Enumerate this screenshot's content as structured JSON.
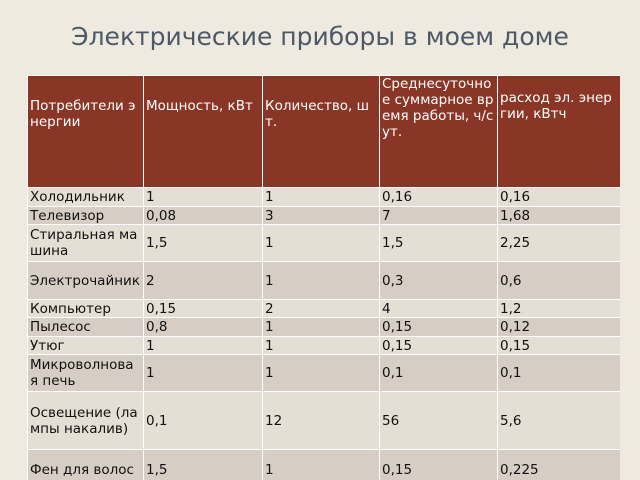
{
  "title": "Электрические приборы в моем доме",
  "table": {
    "header": [
      "Потребители энергии",
      "Мощность, кВт",
      "Количество, шт.",
      "Среднесуточное суммарное время работы, ч/сут.",
      " расход эл. энергии, кВтч"
    ],
    "rows": [
      [
        "Холодильник",
        "1",
        "1",
        "0,16",
        "0,16"
      ],
      [
        "Телевизор",
        "0,08",
        "3",
        "7",
        "1,68"
      ],
      [
        "Стиральная машина",
        "1,5",
        "1",
        "1,5",
        "2,25"
      ],
      [
        "Электрочайник",
        "2",
        "1",
        "0,3",
        "0,6"
      ],
      [
        "Компьютер",
        "0,15",
        "2",
        "4",
        "1,2"
      ],
      [
        "Пылесос",
        "0,8",
        "1",
        "0,15",
        "0,12"
      ],
      [
        "Утюг",
        "1",
        "1",
        "0,15",
        "0,15"
      ],
      [
        "Микроволновая печь",
        "1",
        "1",
        "0,1",
        "0,1"
      ],
      [
        "Освещение (лампы накалив)",
        "0,1",
        "12",
        "56",
        "5,6"
      ],
      [
        "Фен для волос",
        "1,5",
        "1",
        "0,15",
        "0,225"
      ]
    ]
  }
}
